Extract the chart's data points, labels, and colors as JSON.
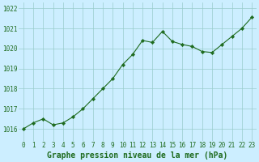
{
  "x": [
    0,
    1,
    2,
    3,
    4,
    5,
    6,
    7,
    8,
    9,
    10,
    11,
    12,
    13,
    14,
    15,
    16,
    17,
    18,
    19,
    20,
    21,
    22,
    23
  ],
  "y": [
    1016.0,
    1016.3,
    1016.5,
    1016.2,
    1016.3,
    1016.6,
    1017.0,
    1017.5,
    1018.0,
    1018.5,
    1019.2,
    1019.7,
    1020.4,
    1020.3,
    1020.85,
    1020.35,
    1020.2,
    1020.1,
    1019.85,
    1019.8,
    1020.2,
    1020.6,
    1021.0,
    1021.55
  ],
  "line_color": "#1e6b1e",
  "marker_color": "#1e6b1e",
  "bg_color": "#cceeff",
  "grid_color": "#99cccc",
  "xlabel": "Graphe pression niveau de la mer (hPa)",
  "ylim_min": 1015.4,
  "ylim_max": 1022.3,
  "xlim_min": -0.5,
  "xlim_max": 23.5,
  "yticks": [
    1016,
    1017,
    1018,
    1019,
    1020,
    1021,
    1022
  ],
  "xticks": [
    0,
    1,
    2,
    3,
    4,
    5,
    6,
    7,
    8,
    9,
    10,
    11,
    12,
    13,
    14,
    15,
    16,
    17,
    18,
    19,
    20,
    21,
    22,
    23
  ],
  "xlabel_fontsize": 7.0,
  "tick_fontsize": 5.5,
  "tick_color": "#1e6b1e",
  "xlabel_color": "#1e6b1e"
}
